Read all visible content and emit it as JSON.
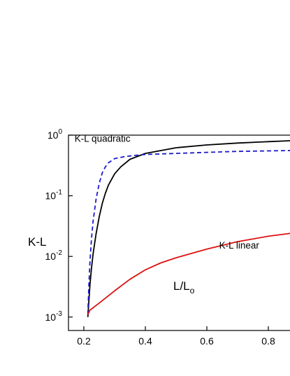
{
  "chart_data": {
    "type": "line",
    "xlabel": "L/L",
    "xlabel_subscript": "o",
    "ylabel": "K-L",
    "xlim": [
      0.15,
      0.9
    ],
    "ylim": [
      0.0006,
      1.0
    ],
    "yscale": "log",
    "grid": false,
    "x_ticks": [
      0.2,
      0.4,
      0.6,
      0.8
    ],
    "x_tick_labels": [
      "0.2",
      "0.4",
      "0.6",
      "0.8"
    ],
    "y_ticks": [
      0.001,
      0.01,
      0.1,
      1
    ],
    "y_tick_labels": [
      {
        "base": "10",
        "exp": "-3"
      },
      {
        "base": "10",
        "exp": "-2"
      },
      {
        "base": "10",
        "exp": "-1"
      },
      {
        "base": "10",
        "exp": "0"
      }
    ],
    "annotations": [
      {
        "text": "K-L quadratic",
        "x": 0.17,
        "y": 0.78
      },
      {
        "text": "K-L linear",
        "x": 0.64,
        "y": 0.0135
      }
    ],
    "series": [
      {
        "color": "#000000",
        "style": "solid",
        "x": [
          0.213,
          0.216,
          0.22,
          0.225,
          0.23,
          0.24,
          0.25,
          0.26,
          0.27,
          0.28,
          0.3,
          0.32,
          0.35,
          0.4,
          0.5,
          0.6,
          0.7,
          0.8,
          0.9
        ],
        "y": [
          0.001,
          0.0017,
          0.0035,
          0.0065,
          0.011,
          0.024,
          0.045,
          0.075,
          0.11,
          0.15,
          0.23,
          0.3,
          0.4,
          0.5,
          0.62,
          0.69,
          0.74,
          0.78,
          0.82
        ]
      },
      {
        "color": "#1a1acc",
        "style": "dashed",
        "x": [
          0.213,
          0.216,
          0.22,
          0.225,
          0.23,
          0.24,
          0.25,
          0.26,
          0.27,
          0.28,
          0.3,
          0.33,
          0.36,
          0.4,
          0.5,
          0.6,
          0.7,
          0.8,
          0.9
        ],
        "y": [
          0.0011,
          0.003,
          0.0085,
          0.02,
          0.038,
          0.09,
          0.16,
          0.24,
          0.3,
          0.35,
          0.41,
          0.44,
          0.46,
          0.48,
          0.5,
          0.52,
          0.54,
          0.55,
          0.56
        ]
      },
      {
        "color": "#dd1111",
        "style": "solid",
        "x": [
          0.213,
          0.22,
          0.25,
          0.3,
          0.35,
          0.4,
          0.45,
          0.5,
          0.6,
          0.7,
          0.8,
          0.9
        ],
        "y": [
          0.0011,
          0.0013,
          0.0017,
          0.0027,
          0.0042,
          0.006,
          0.0078,
          0.0095,
          0.0132,
          0.0175,
          0.0215,
          0.025
        ]
      }
    ]
  }
}
